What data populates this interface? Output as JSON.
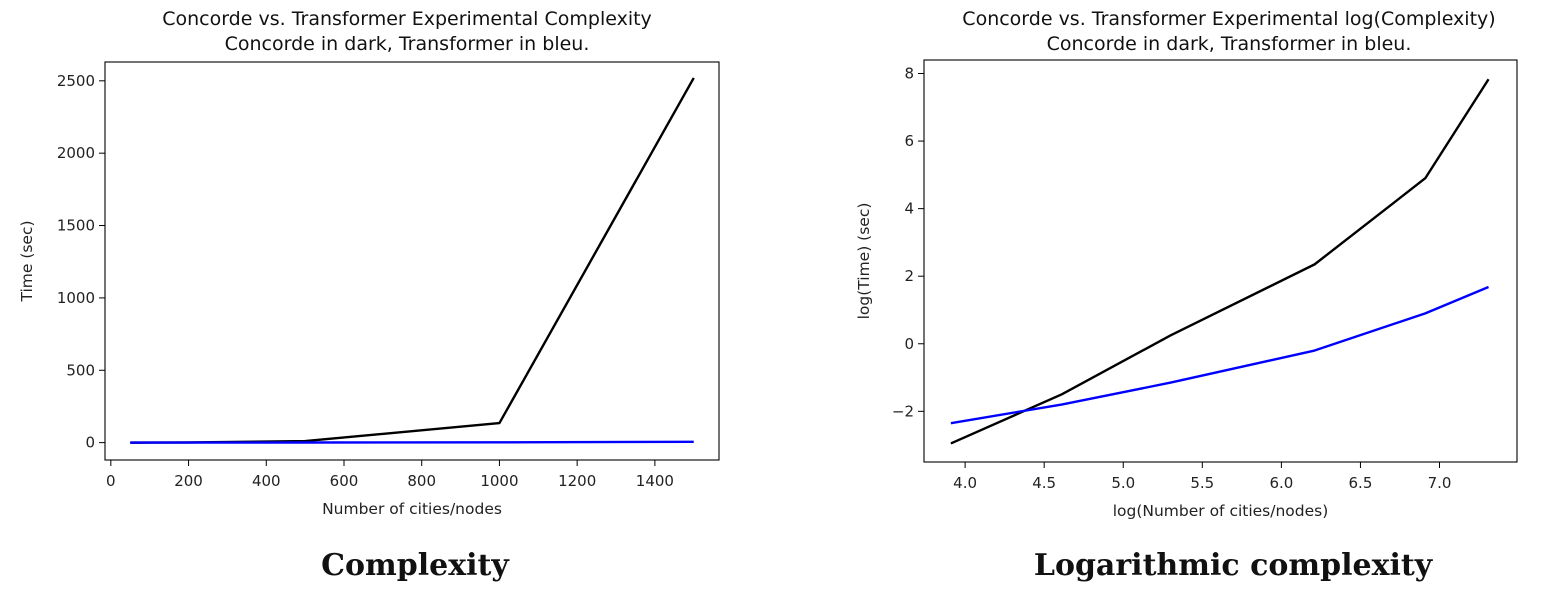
{
  "chart_data": [
    {
      "type": "line",
      "title": "Concorde vs. Transformer Experimental Complexity",
      "subtitle": "Concorde in dark, Transformer in bleu.",
      "xlabel": "Number of cities/nodes",
      "ylabel": "Time (sec)",
      "caption": "Complexity",
      "xlim": [
        -15,
        1565
      ],
      "ylim": [
        -120,
        2630
      ],
      "xticks": [
        0,
        200,
        400,
        600,
        800,
        1000,
        1200,
        1400
      ],
      "xtick_labels": [
        "0",
        "200",
        "400",
        "600",
        "800",
        "1000",
        "1200",
        "1400"
      ],
      "yticks": [
        0,
        500,
        1000,
        1500,
        2000,
        2500
      ],
      "ytick_labels": [
        "0",
        "500",
        "1000",
        "1500",
        "2000",
        "2500"
      ],
      "series": [
        {
          "name": "Concorde",
          "color": "#000000",
          "x": [
            50,
            100,
            200,
            500,
            1000,
            1500
          ],
          "y": [
            0.05,
            0.22,
            1.3,
            10.5,
            135,
            2520
          ]
        },
        {
          "name": "Transformer",
          "color": "#0000ff",
          "x": [
            50,
            100,
            200,
            500,
            1000,
            1500
          ],
          "y": [
            0.09,
            0.16,
            0.31,
            0.82,
            2.4,
            5.4
          ]
        }
      ]
    },
    {
      "type": "line",
      "title": "Concorde vs. Transformer Experimental log(Complexity)",
      "subtitle": "Concorde in dark, Transformer in bleu.",
      "xlabel": "log(Number of cities/nodes)",
      "ylabel": "log(Time) (sec)",
      "caption": "Logarithmic complexity",
      "xlim": [
        3.74,
        7.49
      ],
      "ylim": [
        -3.5,
        8.4
      ],
      "xticks": [
        4.0,
        4.5,
        5.0,
        5.5,
        6.0,
        6.5,
        7.0
      ],
      "xtick_labels": [
        "4.0",
        "4.5",
        "5.0",
        "5.5",
        "6.0",
        "6.5",
        "7.0"
      ],
      "yticks": [
        -2,
        0,
        2,
        4,
        6,
        8
      ],
      "ytick_labels": [
        "−2",
        "0",
        "2",
        "4",
        "6",
        "8"
      ],
      "series": [
        {
          "name": "Concorde",
          "color": "#000000",
          "x": [
            3.91,
            4.61,
            5.3,
            6.21,
            6.91,
            7.31
          ],
          "y": [
            -2.95,
            -1.5,
            0.25,
            2.35,
            4.9,
            7.83
          ]
        },
        {
          "name": "Transformer",
          "color": "#0000ff",
          "x": [
            3.91,
            4.61,
            5.3,
            6.21,
            6.91,
            7.31
          ],
          "y": [
            -2.35,
            -1.8,
            -1.15,
            -0.2,
            0.9,
            1.68
          ]
        }
      ]
    }
  ]
}
